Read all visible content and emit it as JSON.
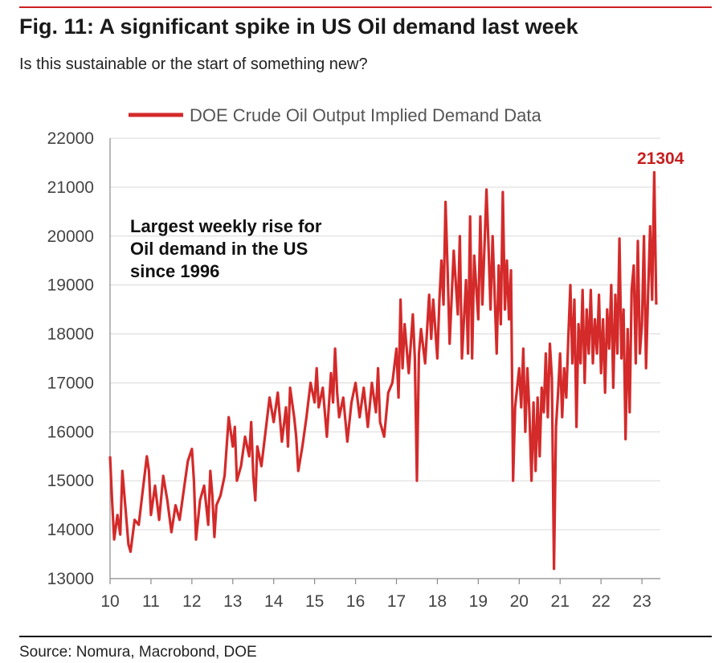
{
  "header": {
    "title": "Fig. 11: A significant spike in US Oil demand last week",
    "subtitle": "Is this sustainable or the start of something new?"
  },
  "footer": {
    "source": "Source: Nomura, Macrobond, DOE"
  },
  "colors": {
    "accent": "#cc1f1f",
    "series": "#d42a2a",
    "grid": "#d9d9d9"
  },
  "chart_data": {
    "type": "line",
    "series": [
      {
        "name": "DOE Crude Oil Output Implied Demand Data",
        "points": [
          [
            10.0,
            15500
          ],
          [
            10.05,
            14600
          ],
          [
            10.1,
            13800
          ],
          [
            10.18,
            14300
          ],
          [
            10.25,
            13900
          ],
          [
            10.3,
            15200
          ],
          [
            10.38,
            14400
          ],
          [
            10.45,
            13700
          ],
          [
            10.5,
            13550
          ],
          [
            10.6,
            14200
          ],
          [
            10.7,
            14100
          ],
          [
            10.8,
            14800
          ],
          [
            10.9,
            15500
          ],
          [
            10.95,
            15200
          ],
          [
            11.0,
            14300
          ],
          [
            11.1,
            14900
          ],
          [
            11.2,
            14200
          ],
          [
            11.3,
            15100
          ],
          [
            11.4,
            14600
          ],
          [
            11.5,
            13950
          ],
          [
            11.6,
            14500
          ],
          [
            11.7,
            14200
          ],
          [
            11.8,
            14800
          ],
          [
            11.9,
            15400
          ],
          [
            12.0,
            15650
          ],
          [
            12.05,
            15000
          ],
          [
            12.1,
            13800
          ],
          [
            12.2,
            14600
          ],
          [
            12.3,
            14900
          ],
          [
            12.4,
            14100
          ],
          [
            12.45,
            15200
          ],
          [
            12.5,
            14700
          ],
          [
            12.55,
            13850
          ],
          [
            12.6,
            14500
          ],
          [
            12.7,
            14700
          ],
          [
            12.8,
            15100
          ],
          [
            12.9,
            16300
          ],
          [
            13.0,
            15700
          ],
          [
            13.05,
            16100
          ],
          [
            13.1,
            15000
          ],
          [
            13.2,
            15300
          ],
          [
            13.3,
            15900
          ],
          [
            13.4,
            15500
          ],
          [
            13.45,
            16200
          ],
          [
            13.5,
            15100
          ],
          [
            13.55,
            14600
          ],
          [
            13.6,
            15700
          ],
          [
            13.7,
            15300
          ],
          [
            13.8,
            16000
          ],
          [
            13.9,
            16700
          ],
          [
            14.0,
            16200
          ],
          [
            14.1,
            16800
          ],
          [
            14.2,
            15800
          ],
          [
            14.3,
            16500
          ],
          [
            14.35,
            15700
          ],
          [
            14.4,
            16900
          ],
          [
            14.5,
            16300
          ],
          [
            14.55,
            15900
          ],
          [
            14.6,
            15200
          ],
          [
            14.7,
            15700
          ],
          [
            14.8,
            16300
          ],
          [
            14.9,
            17000
          ],
          [
            15.0,
            16600
          ],
          [
            15.05,
            17300
          ],
          [
            15.1,
            16500
          ],
          [
            15.2,
            16900
          ],
          [
            15.3,
            15900
          ],
          [
            15.4,
            17200
          ],
          [
            15.45,
            16600
          ],
          [
            15.5,
            17700
          ],
          [
            15.55,
            16800
          ],
          [
            15.6,
            16300
          ],
          [
            15.7,
            16700
          ],
          [
            15.8,
            15800
          ],
          [
            15.9,
            16600
          ],
          [
            16.0,
            17000
          ],
          [
            16.1,
            16300
          ],
          [
            16.2,
            16900
          ],
          [
            16.3,
            16100
          ],
          [
            16.4,
            17000
          ],
          [
            16.5,
            16400
          ],
          [
            16.55,
            17300
          ],
          [
            16.6,
            16200
          ],
          [
            16.7,
            15900
          ],
          [
            16.8,
            16800
          ],
          [
            16.9,
            17000
          ],
          [
            17.0,
            17700
          ],
          [
            17.05,
            16700
          ],
          [
            17.1,
            18700
          ],
          [
            17.15,
            17300
          ],
          [
            17.2,
            18200
          ],
          [
            17.3,
            17200
          ],
          [
            17.4,
            18400
          ],
          [
            17.45,
            17500
          ],
          [
            17.5,
            15000
          ],
          [
            17.55,
            17600
          ],
          [
            17.6,
            18100
          ],
          [
            17.7,
            17400
          ],
          [
            17.8,
            18800
          ],
          [
            17.85,
            17900
          ],
          [
            17.9,
            18700
          ],
          [
            18.0,
            17500
          ],
          [
            18.05,
            18700
          ],
          [
            18.1,
            19500
          ],
          [
            18.15,
            18600
          ],
          [
            18.2,
            20700
          ],
          [
            18.25,
            19300
          ],
          [
            18.3,
            17800
          ],
          [
            18.4,
            19700
          ],
          [
            18.5,
            18400
          ],
          [
            18.55,
            20000
          ],
          [
            18.6,
            17500
          ],
          [
            18.7,
            19100
          ],
          [
            18.75,
            17600
          ],
          [
            18.8,
            20400
          ],
          [
            18.85,
            17500
          ],
          [
            18.9,
            19600
          ],
          [
            19.0,
            18300
          ],
          [
            19.05,
            20400
          ],
          [
            19.1,
            18600
          ],
          [
            19.2,
            20950
          ],
          [
            19.25,
            19800
          ],
          [
            19.3,
            18500
          ],
          [
            19.35,
            20000
          ],
          [
            19.45,
            17600
          ],
          [
            19.5,
            19400
          ],
          [
            19.55,
            18200
          ],
          [
            19.6,
            20900
          ],
          [
            19.65,
            18500
          ],
          [
            19.7,
            19500
          ],
          [
            19.75,
            18300
          ],
          [
            19.8,
            19300
          ],
          [
            19.85,
            15000
          ],
          [
            19.9,
            16500
          ],
          [
            20.0,
            17300
          ],
          [
            20.05,
            16500
          ],
          [
            20.1,
            17700
          ],
          [
            20.15,
            16000
          ],
          [
            20.2,
            17300
          ],
          [
            20.25,
            16400
          ],
          [
            20.3,
            15000
          ],
          [
            20.35,
            16600
          ],
          [
            20.4,
            15200
          ],
          [
            20.45,
            16700
          ],
          [
            20.5,
            15500
          ],
          [
            20.55,
            16900
          ],
          [
            20.6,
            16400
          ],
          [
            20.65,
            17600
          ],
          [
            20.7,
            16300
          ],
          [
            20.75,
            17800
          ],
          [
            20.8,
            17100
          ],
          [
            20.85,
            13200
          ],
          [
            20.9,
            16100
          ],
          [
            20.95,
            16800
          ],
          [
            21.0,
            17600
          ],
          [
            21.05,
            16300
          ],
          [
            21.1,
            17300
          ],
          [
            21.15,
            16700
          ],
          [
            21.2,
            17900
          ],
          [
            21.25,
            19000
          ],
          [
            21.3,
            17400
          ],
          [
            21.35,
            18700
          ],
          [
            21.4,
            16100
          ],
          [
            21.45,
            18200
          ],
          [
            21.5,
            17400
          ],
          [
            21.55,
            18900
          ],
          [
            21.6,
            17000
          ],
          [
            21.65,
            18500
          ],
          [
            21.7,
            17600
          ],
          [
            21.75,
            18900
          ],
          [
            21.8,
            17400
          ],
          [
            21.85,
            18300
          ],
          [
            21.9,
            17600
          ],
          [
            21.95,
            18800
          ],
          [
            22.0,
            17200
          ],
          [
            22.05,
            18300
          ],
          [
            22.1,
            16800
          ],
          [
            22.15,
            18500
          ],
          [
            22.2,
            17700
          ],
          [
            22.25,
            19000
          ],
          [
            22.3,
            16900
          ],
          [
            22.35,
            18800
          ],
          [
            22.4,
            17600
          ],
          [
            22.45,
            19950
          ],
          [
            22.5,
            17500
          ],
          [
            22.55,
            18500
          ],
          [
            22.6,
            15850
          ],
          [
            22.65,
            18100
          ],
          [
            22.7,
            16400
          ],
          [
            22.75,
            18900
          ],
          [
            22.8,
            19400
          ],
          [
            22.85,
            17400
          ],
          [
            22.9,
            19900
          ],
          [
            22.95,
            17600
          ],
          [
            23.0,
            18200
          ],
          [
            23.05,
            20000
          ],
          [
            23.1,
            17300
          ],
          [
            23.15,
            18800
          ],
          [
            23.2,
            20200
          ],
          [
            23.25,
            18700
          ],
          [
            23.3,
            21304
          ],
          [
            23.35,
            18600
          ]
        ]
      }
    ],
    "xticks": [
      "10",
      "11",
      "12",
      "13",
      "14",
      "15",
      "16",
      "17",
      "18",
      "19",
      "20",
      "21",
      "22",
      "23"
    ],
    "yticks": [
      "13000",
      "14000",
      "15000",
      "16000",
      "17000",
      "18000",
      "19000",
      "20000",
      "21000",
      "22000"
    ],
    "xlim": [
      10,
      23.45
    ],
    "ylim": [
      13000,
      22000
    ],
    "grid": true,
    "legend_position": "top",
    "annotations": {
      "callout_lines": [
        "Largest weekly rise for",
        "Oil demand in the US",
        "since 1996"
      ],
      "peak_value": "21304"
    }
  }
}
